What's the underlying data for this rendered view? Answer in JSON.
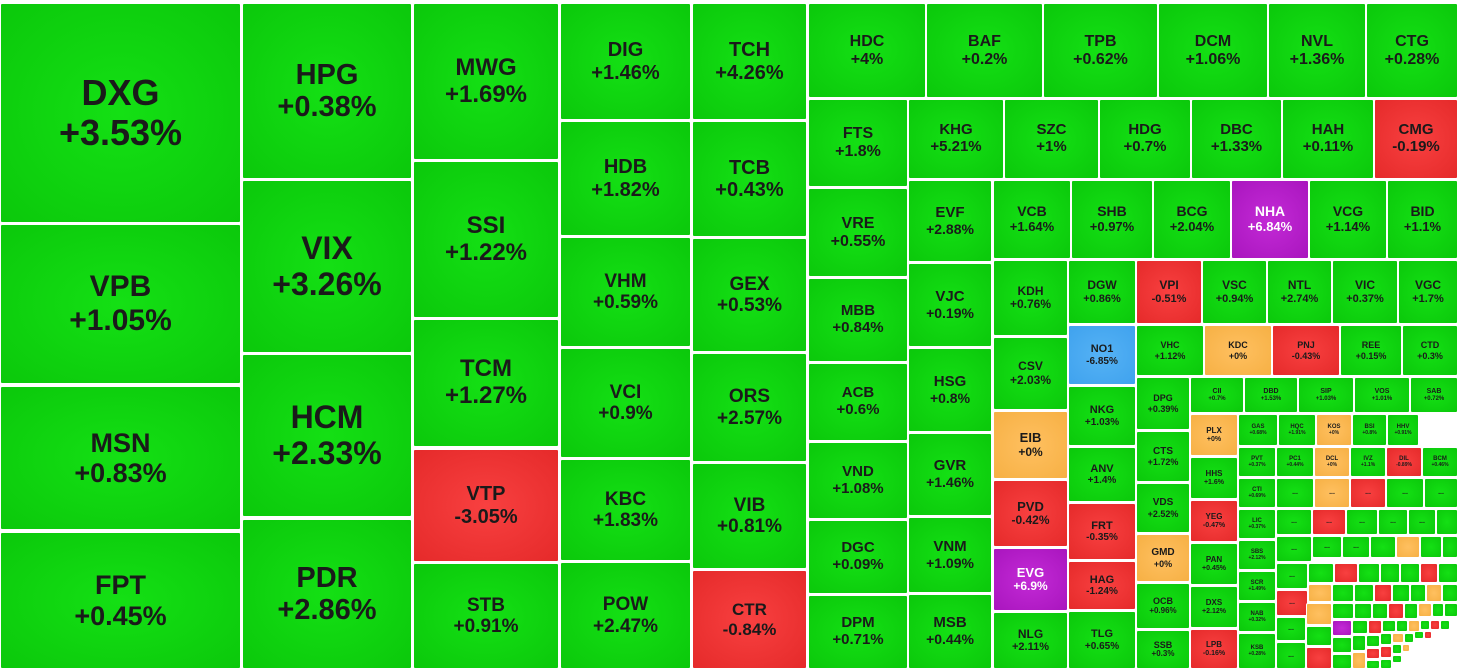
{
  "colors": {
    "up": "#0bc80b",
    "down": "#e52a2a",
    "reference": "#f6b044",
    "ceiling": "#a915be",
    "floor": "#3fa2ee"
  },
  "chart_data": {
    "type": "treemap",
    "title": "",
    "tiles": [
      {
        "ticker": "DXG",
        "change": "+3.53%",
        "value": 3.53,
        "status": "up"
      },
      {
        "ticker": "VPB",
        "change": "+1.05%",
        "value": 1.05,
        "status": "up"
      },
      {
        "ticker": "MSN",
        "change": "+0.83%",
        "value": 0.83,
        "status": "up"
      },
      {
        "ticker": "FPT",
        "change": "+0.45%",
        "value": 0.45,
        "status": "up"
      },
      {
        "ticker": "HPG",
        "change": "+0.38%",
        "value": 0.38,
        "status": "up"
      },
      {
        "ticker": "VIX",
        "change": "+3.26%",
        "value": 3.26,
        "status": "up"
      },
      {
        "ticker": "HCM",
        "change": "+2.33%",
        "value": 2.33,
        "status": "up"
      },
      {
        "ticker": "PDR",
        "change": "+2.86%",
        "value": 2.86,
        "status": "up"
      },
      {
        "ticker": "MWG",
        "change": "+1.69%",
        "value": 1.69,
        "status": "up"
      },
      {
        "ticker": "SSI",
        "change": "+1.22%",
        "value": 1.22,
        "status": "up"
      },
      {
        "ticker": "TCM",
        "change": "+1.27%",
        "value": 1.27,
        "status": "up"
      },
      {
        "ticker": "VTP",
        "change": "-3.05%",
        "value": -3.05,
        "status": "down"
      },
      {
        "ticker": "STB",
        "change": "+0.91%",
        "value": 0.91,
        "status": "up"
      },
      {
        "ticker": "DIG",
        "change": "+1.46%",
        "value": 1.46,
        "status": "up"
      },
      {
        "ticker": "HDB",
        "change": "+1.82%",
        "value": 1.82,
        "status": "up"
      },
      {
        "ticker": "VHM",
        "change": "+0.59%",
        "value": 0.59,
        "status": "up"
      },
      {
        "ticker": "VCI",
        "change": "+0.9%",
        "value": 0.9,
        "status": "up"
      },
      {
        "ticker": "KBC",
        "change": "+1.83%",
        "value": 1.83,
        "status": "up"
      },
      {
        "ticker": "POW",
        "change": "+2.47%",
        "value": 2.47,
        "status": "up"
      },
      {
        "ticker": "TCH",
        "change": "+4.26%",
        "value": 4.26,
        "status": "up"
      },
      {
        "ticker": "TCB",
        "change": "+0.43%",
        "value": 0.43,
        "status": "up"
      },
      {
        "ticker": "GEX",
        "change": "+0.53%",
        "value": 0.53,
        "status": "up"
      },
      {
        "ticker": "ORS",
        "change": "+2.57%",
        "value": 2.57,
        "status": "up"
      },
      {
        "ticker": "VIB",
        "change": "+0.81%",
        "value": 0.81,
        "status": "up"
      },
      {
        "ticker": "CTR",
        "change": "-0.84%",
        "value": -0.84,
        "status": "down"
      },
      {
        "ticker": "HDC",
        "change": "+4%",
        "value": 4,
        "status": "up"
      },
      {
        "ticker": "BAF",
        "change": "+0.2%",
        "value": 0.2,
        "status": "up"
      },
      {
        "ticker": "TPB",
        "change": "+0.62%",
        "value": 0.62,
        "status": "up"
      },
      {
        "ticker": "DCM",
        "change": "+1.06%",
        "value": 1.06,
        "status": "up"
      },
      {
        "ticker": "NVL",
        "change": "+1.36%",
        "value": 1.36,
        "status": "up"
      },
      {
        "ticker": "CTG",
        "change": "+0.28%",
        "value": 0.28,
        "status": "up"
      },
      {
        "ticker": "FTS",
        "change": "+1.8%",
        "value": 1.8,
        "status": "up"
      },
      {
        "ticker": "VRE",
        "change": "+0.55%",
        "value": 0.55,
        "status": "up"
      },
      {
        "ticker": "MBB",
        "change": "+0.84%",
        "value": 0.84,
        "status": "up"
      },
      {
        "ticker": "ACB",
        "change": "+0.6%",
        "value": 0.6,
        "status": "up"
      },
      {
        "ticker": "VND",
        "change": "+1.08%",
        "value": 1.08,
        "status": "up"
      },
      {
        "ticker": "DGC",
        "change": "+0.09%",
        "value": 0.09,
        "status": "up"
      },
      {
        "ticker": "DPM",
        "change": "+0.71%",
        "value": 0.71,
        "status": "up"
      },
      {
        "ticker": "KHG",
        "change": "+5.21%",
        "value": 5.21,
        "status": "up"
      },
      {
        "ticker": "SZC",
        "change": "+1%",
        "value": 1,
        "status": "up"
      },
      {
        "ticker": "HDG",
        "change": "+0.7%",
        "value": 0.7,
        "status": "up"
      },
      {
        "ticker": "DBC",
        "change": "+1.33%",
        "value": 1.33,
        "status": "up"
      },
      {
        "ticker": "HAH",
        "change": "+0.11%",
        "value": 0.11,
        "status": "up"
      },
      {
        "ticker": "CMG",
        "change": "-0.19%",
        "value": -0.19,
        "status": "down"
      },
      {
        "ticker": "EVF",
        "change": "+2.88%",
        "value": 2.88,
        "status": "up"
      },
      {
        "ticker": "VJC",
        "change": "+0.19%",
        "value": 0.19,
        "status": "up"
      },
      {
        "ticker": "HSG",
        "change": "+0.8%",
        "value": 0.8,
        "status": "up"
      },
      {
        "ticker": "GVR",
        "change": "+1.46%",
        "value": 1.46,
        "status": "up"
      },
      {
        "ticker": "VNM",
        "change": "+1.09%",
        "value": 1.09,
        "status": "up"
      },
      {
        "ticker": "MSB",
        "change": "+0.44%",
        "value": 0.44,
        "status": "up"
      },
      {
        "ticker": "VCB",
        "change": "+1.64%",
        "value": 1.64,
        "status": "up"
      },
      {
        "ticker": "SHB",
        "change": "+0.97%",
        "value": 0.97,
        "status": "up"
      },
      {
        "ticker": "BCG",
        "change": "+2.04%",
        "value": 2.04,
        "status": "up"
      },
      {
        "ticker": "NHA",
        "change": "+6.84%",
        "value": 6.84,
        "status": "ceiling"
      },
      {
        "ticker": "VCG",
        "change": "+1.14%",
        "value": 1.14,
        "status": "up"
      },
      {
        "ticker": "BID",
        "change": "+1.1%",
        "value": 1.1,
        "status": "up"
      },
      {
        "ticker": "KDH",
        "change": "+0.76%",
        "value": 0.76,
        "status": "up"
      },
      {
        "ticker": "CSV",
        "change": "+2.03%",
        "value": 2.03,
        "status": "up"
      },
      {
        "ticker": "EIB",
        "change": "+0%",
        "value": 0,
        "status": "reference"
      },
      {
        "ticker": "PVD",
        "change": "-0.42%",
        "value": -0.42,
        "status": "down"
      },
      {
        "ticker": "EVG",
        "change": "+6.9%",
        "value": 6.9,
        "status": "ceiling"
      },
      {
        "ticker": "NLG",
        "change": "+2.11%",
        "value": 2.11,
        "status": "up"
      },
      {
        "ticker": "DGW",
        "change": "+0.86%",
        "value": 0.86,
        "status": "up"
      },
      {
        "ticker": "VPI",
        "change": "-0.51%",
        "value": -0.51,
        "status": "down"
      },
      {
        "ticker": "VSC",
        "change": "+0.94%",
        "value": 0.94,
        "status": "up"
      },
      {
        "ticker": "NTL",
        "change": "+2.74%",
        "value": 2.74,
        "status": "up"
      },
      {
        "ticker": "VIC",
        "change": "+0.37%",
        "value": 0.37,
        "status": "up"
      },
      {
        "ticker": "VGC",
        "change": "+1.7%",
        "value": 1.7,
        "status": "up"
      },
      {
        "ticker": "NO1",
        "change": "-6.85%",
        "value": -6.85,
        "status": "floor"
      },
      {
        "ticker": "NKG",
        "change": "+1.03%",
        "value": 1.03,
        "status": "up"
      },
      {
        "ticker": "ANV",
        "change": "+1.4%",
        "value": 1.4,
        "status": "up"
      },
      {
        "ticker": "FRT",
        "change": "-0.35%",
        "value": -0.35,
        "status": "down"
      },
      {
        "ticker": "HAG",
        "change": "-1.24%",
        "value": -1.24,
        "status": "down"
      },
      {
        "ticker": "TLG",
        "change": "+0.65%",
        "value": 0.65,
        "status": "up"
      },
      {
        "ticker": "VHC",
        "change": "+1.12%",
        "value": 1.12,
        "status": "up"
      },
      {
        "ticker": "KDC",
        "change": "+0%",
        "value": 0,
        "status": "reference"
      },
      {
        "ticker": "PNJ",
        "change": "-0.43%",
        "value": -0.43,
        "status": "down"
      },
      {
        "ticker": "REE",
        "change": "+0.15%",
        "value": 0.15,
        "status": "up"
      },
      {
        "ticker": "CTD",
        "change": "+0.3%",
        "value": 0.3,
        "status": "up"
      },
      {
        "ticker": "DPG",
        "change": "+0.39%",
        "value": 0.39,
        "status": "up"
      },
      {
        "ticker": "CTS",
        "change": "+1.72%",
        "value": 1.72,
        "status": "up"
      },
      {
        "ticker": "VDS",
        "change": "+2.52%",
        "value": 2.52,
        "status": "up"
      },
      {
        "ticker": "GMD",
        "change": "+0%",
        "value": 0,
        "status": "reference"
      },
      {
        "ticker": "OCB",
        "change": "+0.96%",
        "value": 0.96,
        "status": "up"
      },
      {
        "ticker": "SSB",
        "change": "+0.3%",
        "value": 0.3,
        "status": "up"
      },
      {
        "ticker": "CII",
        "change": "+0.7%",
        "value": 0.7,
        "status": "up"
      },
      {
        "ticker": "DBD",
        "change": "+1.53%",
        "value": 1.53,
        "status": "up"
      },
      {
        "ticker": "SIP",
        "change": "+1.03%",
        "value": 1.03,
        "status": "up"
      },
      {
        "ticker": "VOS",
        "change": "+1.01%",
        "value": 1.01,
        "status": "up"
      },
      {
        "ticker": "SAB",
        "change": "+0.72%",
        "value": 0.72,
        "status": "up"
      },
      {
        "ticker": "PLX",
        "change": "+0%",
        "value": 0,
        "status": "reference"
      },
      {
        "ticker": "GAS",
        "change": "+0.68%",
        "value": 0.68,
        "status": "up"
      },
      {
        "ticker": "HQC",
        "change": "+1.91%",
        "value": 1.91,
        "status": "up"
      },
      {
        "ticker": "KOS",
        "change": "+0%",
        "value": 0,
        "status": "reference"
      },
      {
        "ticker": "BSI",
        "change": "+0.8%",
        "value": 0.8,
        "status": "up"
      },
      {
        "ticker": "HHV",
        "change": "+0.91%",
        "value": 0.91,
        "status": "up"
      },
      {
        "ticker": "HHS",
        "change": "+1.6%",
        "value": 1.6,
        "status": "up"
      },
      {
        "ticker": "YEG",
        "change": "-0.47%",
        "value": -0.47,
        "status": "down"
      },
      {
        "ticker": "PAN",
        "change": "+0.45%",
        "value": 0.45,
        "status": "up"
      },
      {
        "ticker": "DXS",
        "change": "+2.12%",
        "value": 2.12,
        "status": "up"
      },
      {
        "ticker": "LPB",
        "change": "-0.16%",
        "value": -0.16,
        "status": "down"
      },
      {
        "ticker": "PVT",
        "change": "+0.37%",
        "value": 0.37,
        "status": "up"
      },
      {
        "ticker": "PC1",
        "change": "+0.44%",
        "value": 0.44,
        "status": "up"
      },
      {
        "ticker": "DCL",
        "change": "+0%",
        "value": 0,
        "status": "reference"
      },
      {
        "ticker": "IVZ",
        "change": "+1.1%",
        "value": 1.1,
        "status": "up"
      },
      {
        "ticker": "DIL",
        "change": "-0.89%",
        "value": -0.89,
        "status": "down"
      },
      {
        "ticker": "BCM",
        "change": "+0.46%",
        "value": 0.46,
        "status": "up"
      },
      {
        "ticker": "CTI",
        "change": "+0.69%",
        "value": 0.69,
        "status": "up"
      },
      {
        "ticker": "LIC",
        "change": "+0.37%",
        "value": 0.37,
        "status": "up"
      },
      {
        "ticker": "SBS",
        "change": "+2.12%",
        "value": 2.12,
        "status": "up"
      },
      {
        "ticker": "SCR",
        "change": "+1.49%",
        "value": 1.49,
        "status": "up"
      },
      {
        "ticker": "NAB",
        "change": "+0.32%",
        "value": 0.32,
        "status": "up"
      },
      {
        "ticker": "KSB",
        "change": "+0.28%",
        "value": 0.28,
        "status": "up"
      },
      {
        "ticker": "...",
        "change": "",
        "status": "up"
      }
    ]
  }
}
